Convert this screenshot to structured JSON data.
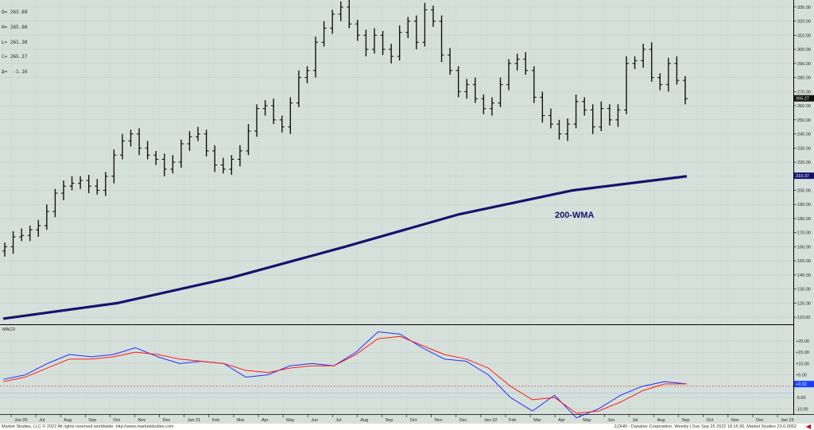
{
  "readout": {
    "open": "O= 263.69",
    "high": "H= 265.60",
    "low": "L= 261.30",
    "close": "C= 265.27",
    "change": "Δ=  -1.16"
  },
  "colors": {
    "background": "#d6e0da",
    "bars": "#111111",
    "wma": "#14146e",
    "macd_line": "#2030ff",
    "signal_line": "#ff1a1a",
    "last_price_box": "#101010",
    "wma_box": "#14146e",
    "macd_box": "#1a3cff"
  },
  "footer": {
    "left": "Market Studies, LLC © 2022 All rights reserved worldwide. http://www.marketstudies.com",
    "right": "3.DHR - Danaher Corporation, Weekly | Sun Sep 25 2022 18:15:36, Market Studies 23.6.0052"
  },
  "chart_data": [
    {
      "type": "ohlc",
      "series": [
        {
          "name": "DHR weekly",
          "values": [
            160,
            167,
            168,
            172,
            175,
            185,
            198,
            203,
            205,
            207,
            203,
            200,
            210,
            225,
            235,
            240,
            230,
            225,
            222,
            215,
            220,
            233,
            238,
            240,
            228,
            218,
            215,
            222,
            228,
            242,
            258,
            260,
            250,
            245,
            262,
            280,
            285,
            305,
            315,
            325,
            330,
            318,
            310,
            300,
            310,
            300,
            295,
            312,
            320,
            305,
            328,
            320,
            296,
            285,
            270,
            275,
            265,
            258,
            262,
            275,
            290,
            293,
            285,
            266,
            253,
            247,
            240,
            247,
            263,
            257,
            245,
            258,
            250,
            257,
            290,
            292,
            300,
            280,
            275,
            290,
            278,
            265
          ]
        }
      ],
      "x_tick_labels": [
        "Jun 20",
        "Jul",
        "Aug",
        "Sep",
        "Oct",
        "Nov",
        "Dec",
        "Jan 21",
        "Feb",
        "Mar",
        "Apr",
        "May",
        "Jun",
        "Jul",
        "Aug",
        "Sep",
        "Oct",
        "Nov",
        "Dec",
        "Jan 22",
        "Feb",
        "Mar",
        "Apr",
        "May",
        "Jun",
        "Jul",
        "Aug",
        "Sep",
        "Oct",
        "Nov",
        "Dec",
        "Jan 23"
      ],
      "y_tick_labels": [
        110,
        120,
        130,
        140,
        150,
        160,
        170,
        180,
        190,
        200,
        210,
        220,
        230,
        240,
        250,
        260,
        270,
        280,
        290,
        300,
        310,
        320,
        330
      ],
      "ylim": [
        105,
        335
      ],
      "last_price_label": "265.27",
      "overlay": {
        "name": "200-WMA",
        "label": "200-WMA",
        "last_value_label": "210.37",
        "values": [
          109,
          120,
          138,
          160,
          183,
          200,
          210
        ]
      }
    },
    {
      "type": "line",
      "title": "MACD",
      "series": [
        {
          "name": "MACD",
          "values": [
            3,
            5,
            10,
            14,
            13,
            14,
            17,
            13,
            10,
            11,
            10,
            4,
            5,
            9,
            10,
            9,
            15,
            24,
            23,
            17,
            12,
            11,
            5,
            -5,
            -11,
            -4,
            -14,
            -10,
            -4,
            0,
            2,
            1
          ]
        },
        {
          "name": "Signal",
          "values": [
            2,
            4,
            8,
            12,
            12,
            13,
            15,
            14,
            12,
            11,
            10,
            7,
            6,
            8,
            9,
            9,
            14,
            21,
            22,
            18,
            14,
            12,
            8,
            0,
            -6,
            -5,
            -12,
            -11,
            -7,
            -2,
            1,
            1
          ]
        }
      ],
      "y_tick_labels": [
        "+20.00",
        "+15.00",
        "+10.00",
        "+5.00",
        "-5.00",
        "-10.00"
      ],
      "ylim": [
        -12,
        27
      ],
      "last_value_label": "+0.92"
    }
  ]
}
